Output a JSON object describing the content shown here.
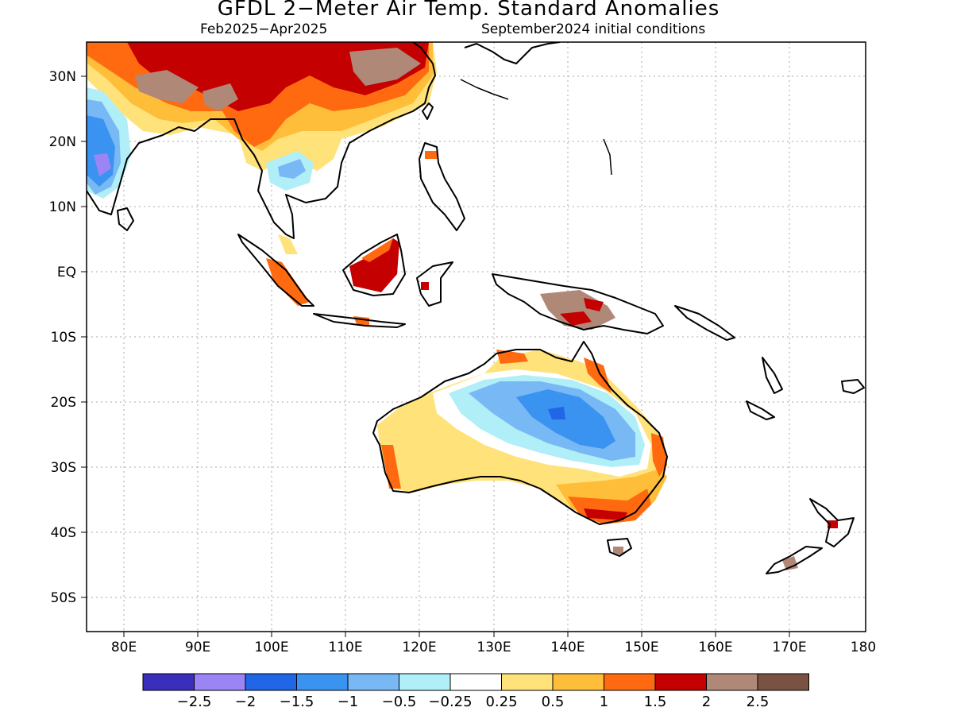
{
  "title": "GFDL 2−Meter Air Temp. Standard Anomalies",
  "subtitle_left": "Feb2025−Apr2025",
  "subtitle_right": "September2024 initial conditions",
  "lat_labels": [
    "30N",
    "20N",
    "10N",
    "EQ",
    "10S",
    "20S",
    "30S",
    "40S",
    "50S"
  ],
  "lon_labels": [
    "80E",
    "90E",
    "100E",
    "110E",
    "120E",
    "130E",
    "140E",
    "150E",
    "160E",
    "170E",
    "180"
  ],
  "colorbar": {
    "colors": [
      "#3a2ebc",
      "#9b85f5",
      "#2066e6",
      "#3a93f0",
      "#78b8f5",
      "#b0eef8",
      "#ffffff",
      "#ffe27a",
      "#ffbe3a",
      "#ff6a10",
      "#c50000",
      "#b08878",
      "#7a5244"
    ],
    "labels": [
      "−2.5",
      "−2",
      "−1.5",
      "−1",
      "−0.5",
      "−0.25",
      "0.25",
      "0.5",
      "1",
      "1.5",
      "2",
      "2.5"
    ]
  }
}
